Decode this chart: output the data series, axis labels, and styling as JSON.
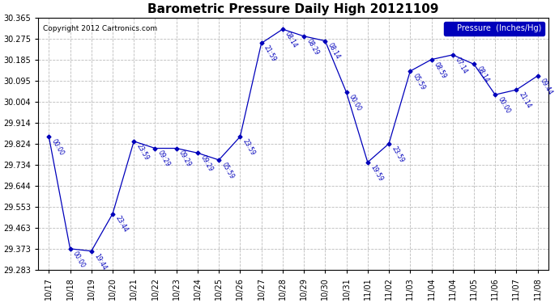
{
  "title": "Barometric Pressure Daily High 20121109",
  "copyright": "Copyright 2012 Cartronics.com",
  "legend_label": "Pressure  (Inches/Hg)",
  "line_color": "#0000BB",
  "background_color": "#FFFFFF",
  "plot_bg_color": "#FFFFFF",
  "grid_color": "#BBBBBB",
  "ylim": [
    29.283,
    30.365
  ],
  "yticks": [
    29.283,
    29.373,
    29.463,
    29.553,
    29.644,
    29.734,
    29.824,
    29.914,
    30.004,
    30.095,
    30.185,
    30.275,
    30.365
  ],
  "x_labels": [
    "10/17",
    "10/18",
    "10/19",
    "10/20",
    "10/21",
    "10/22",
    "10/23",
    "10/24",
    "10/25",
    "10/26",
    "10/27",
    "10/28",
    "10/29",
    "10/30",
    "10/31",
    "11/01",
    "11/02",
    "11/03",
    "11/04",
    "11/04",
    "11/05",
    "11/06",
    "11/07",
    "11/08"
  ],
  "values": [
    29.854,
    29.373,
    29.363,
    29.523,
    29.834,
    29.804,
    29.804,
    29.784,
    29.754,
    29.854,
    30.255,
    30.315,
    30.285,
    30.265,
    30.044,
    29.744,
    29.824,
    30.135,
    30.185,
    30.205,
    30.165,
    30.034,
    30.055,
    30.115
  ],
  "annotations": [
    "00:00",
    "00:00",
    "19:44",
    "23:44",
    "23:59",
    "09:29",
    "09:29",
    "09:29",
    "05:59",
    "23:59",
    "21:59",
    "08:14",
    "08:29",
    "08:14",
    "00:00",
    "19:59",
    "23:59",
    "05:59",
    "08:59",
    "07:14",
    "08:14",
    "00:00",
    "21:14",
    "09:44"
  ]
}
